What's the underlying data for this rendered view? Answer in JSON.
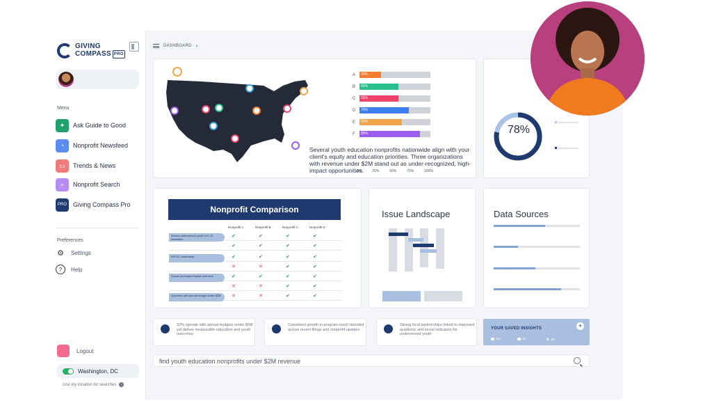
{
  "sidebar": {
    "logo_line1": "GIVING",
    "logo_line2": "COMPASS",
    "logo_badge": "PRO",
    "menu_heading": "Menu",
    "menu": [
      {
        "label": "Ask Guide to Good",
        "icon": "chat-sparkle-icon",
        "color": "#22a06b"
      },
      {
        "label": "Nonprofit Newsfeed",
        "icon": "rss-icon",
        "color": "#5b8def"
      },
      {
        "label": "Trends & News",
        "icon": "book-icon",
        "color": "#f07b7b"
      },
      {
        "label": "Nonprofit Search",
        "icon": "search-icon",
        "color": "#b48cf2"
      },
      {
        "label": "Giving Compass Pro",
        "icon": "pro-badge-icon",
        "color": "#1e3a6e"
      }
    ],
    "prefs_heading": "Preferences",
    "prefs": [
      {
        "label": "Settings",
        "icon": "gear-icon"
      },
      {
        "label": "Help",
        "icon": "question-icon"
      }
    ],
    "logout": "Logout",
    "location": "Washington, DC",
    "location_note": "Use my location for searches"
  },
  "breadcrumb": "DASHBOARD",
  "map_card": {
    "description": "Several youth education nonprofits nationwide align with your client's equity and education priorities. Three organizations with revenue under $2M stand out as under-recognized, high-impact opportunities."
  },
  "chart_data": {
    "type": "bar",
    "categories": [
      "A",
      "B",
      "C",
      "D",
      "E",
      "F"
    ],
    "values": [
      30,
      55,
      55,
      70,
      60,
      85
    ],
    "value_labels": [
      "30%",
      "55%",
      "55%",
      "70%",
      "60%",
      "85%"
    ],
    "colors": [
      "#f47c2c",
      "#27c08a",
      "#f0436a",
      "#3f7ef0",
      "#f2a44a",
      "#9b5cf0"
    ],
    "x_ticks": [
      "0%",
      "25%",
      "50%",
      "75%",
      "100%"
    ],
    "xlim": [
      0,
      100
    ],
    "orientation": "horizontal"
  },
  "donut": {
    "value": "78%",
    "fraction": 0.78,
    "accent": "#1e3a6e",
    "track": "#a9c4e6"
  },
  "comparison": {
    "title": "Nonprofit Comparison",
    "columns": [
      "Nonprofit A",
      "Nonprofit B",
      "Nonprofit C",
      "Nonprofit D"
    ],
    "rows": [
      {
        "label": "Serves underserved youth in K-12 education",
        "marks": [
          true,
          true,
          true,
          true
        ]
      },
      {
        "label": "",
        "marks": [
          true,
          true,
          true,
          true
        ]
      },
      {
        "label": "BIPOC Leadership",
        "marks": [
          true,
          true,
          true,
          true
        ]
      },
      {
        "label": "",
        "marks": [
          false,
          false,
          true,
          true
        ]
      },
      {
        "label": "Shows increased impact over time",
        "marks": [
          true,
          true,
          true,
          true
        ]
      },
      {
        "label": "",
        "marks": [
          false,
          false,
          true,
          true
        ]
      },
      {
        "label": "Operates with annual budget under $2M",
        "marks": [
          false,
          false,
          true,
          true
        ]
      }
    ]
  },
  "issue_landscape": {
    "title": "Issue Landscape"
  },
  "data_sources": {
    "title": "Data Sources",
    "levels": [
      0.6,
      0.28,
      0.48,
      0.78
    ]
  },
  "insights": [
    "32% operate with annual budgets under $5M yet deliver measurable education and youth outcomes",
    "Consistent growth in program reach reported across recent filings and nonprofit updates",
    "Strong local partnerships linked to improved academic and social indicators for underserved youth"
  ],
  "saved_insights": {
    "title": "YOUR SAVED INSIGHTS",
    "stats": [
      "112",
      "42",
      "29"
    ]
  },
  "search": {
    "value": "find youth education nonprofits under $2M revenue"
  }
}
